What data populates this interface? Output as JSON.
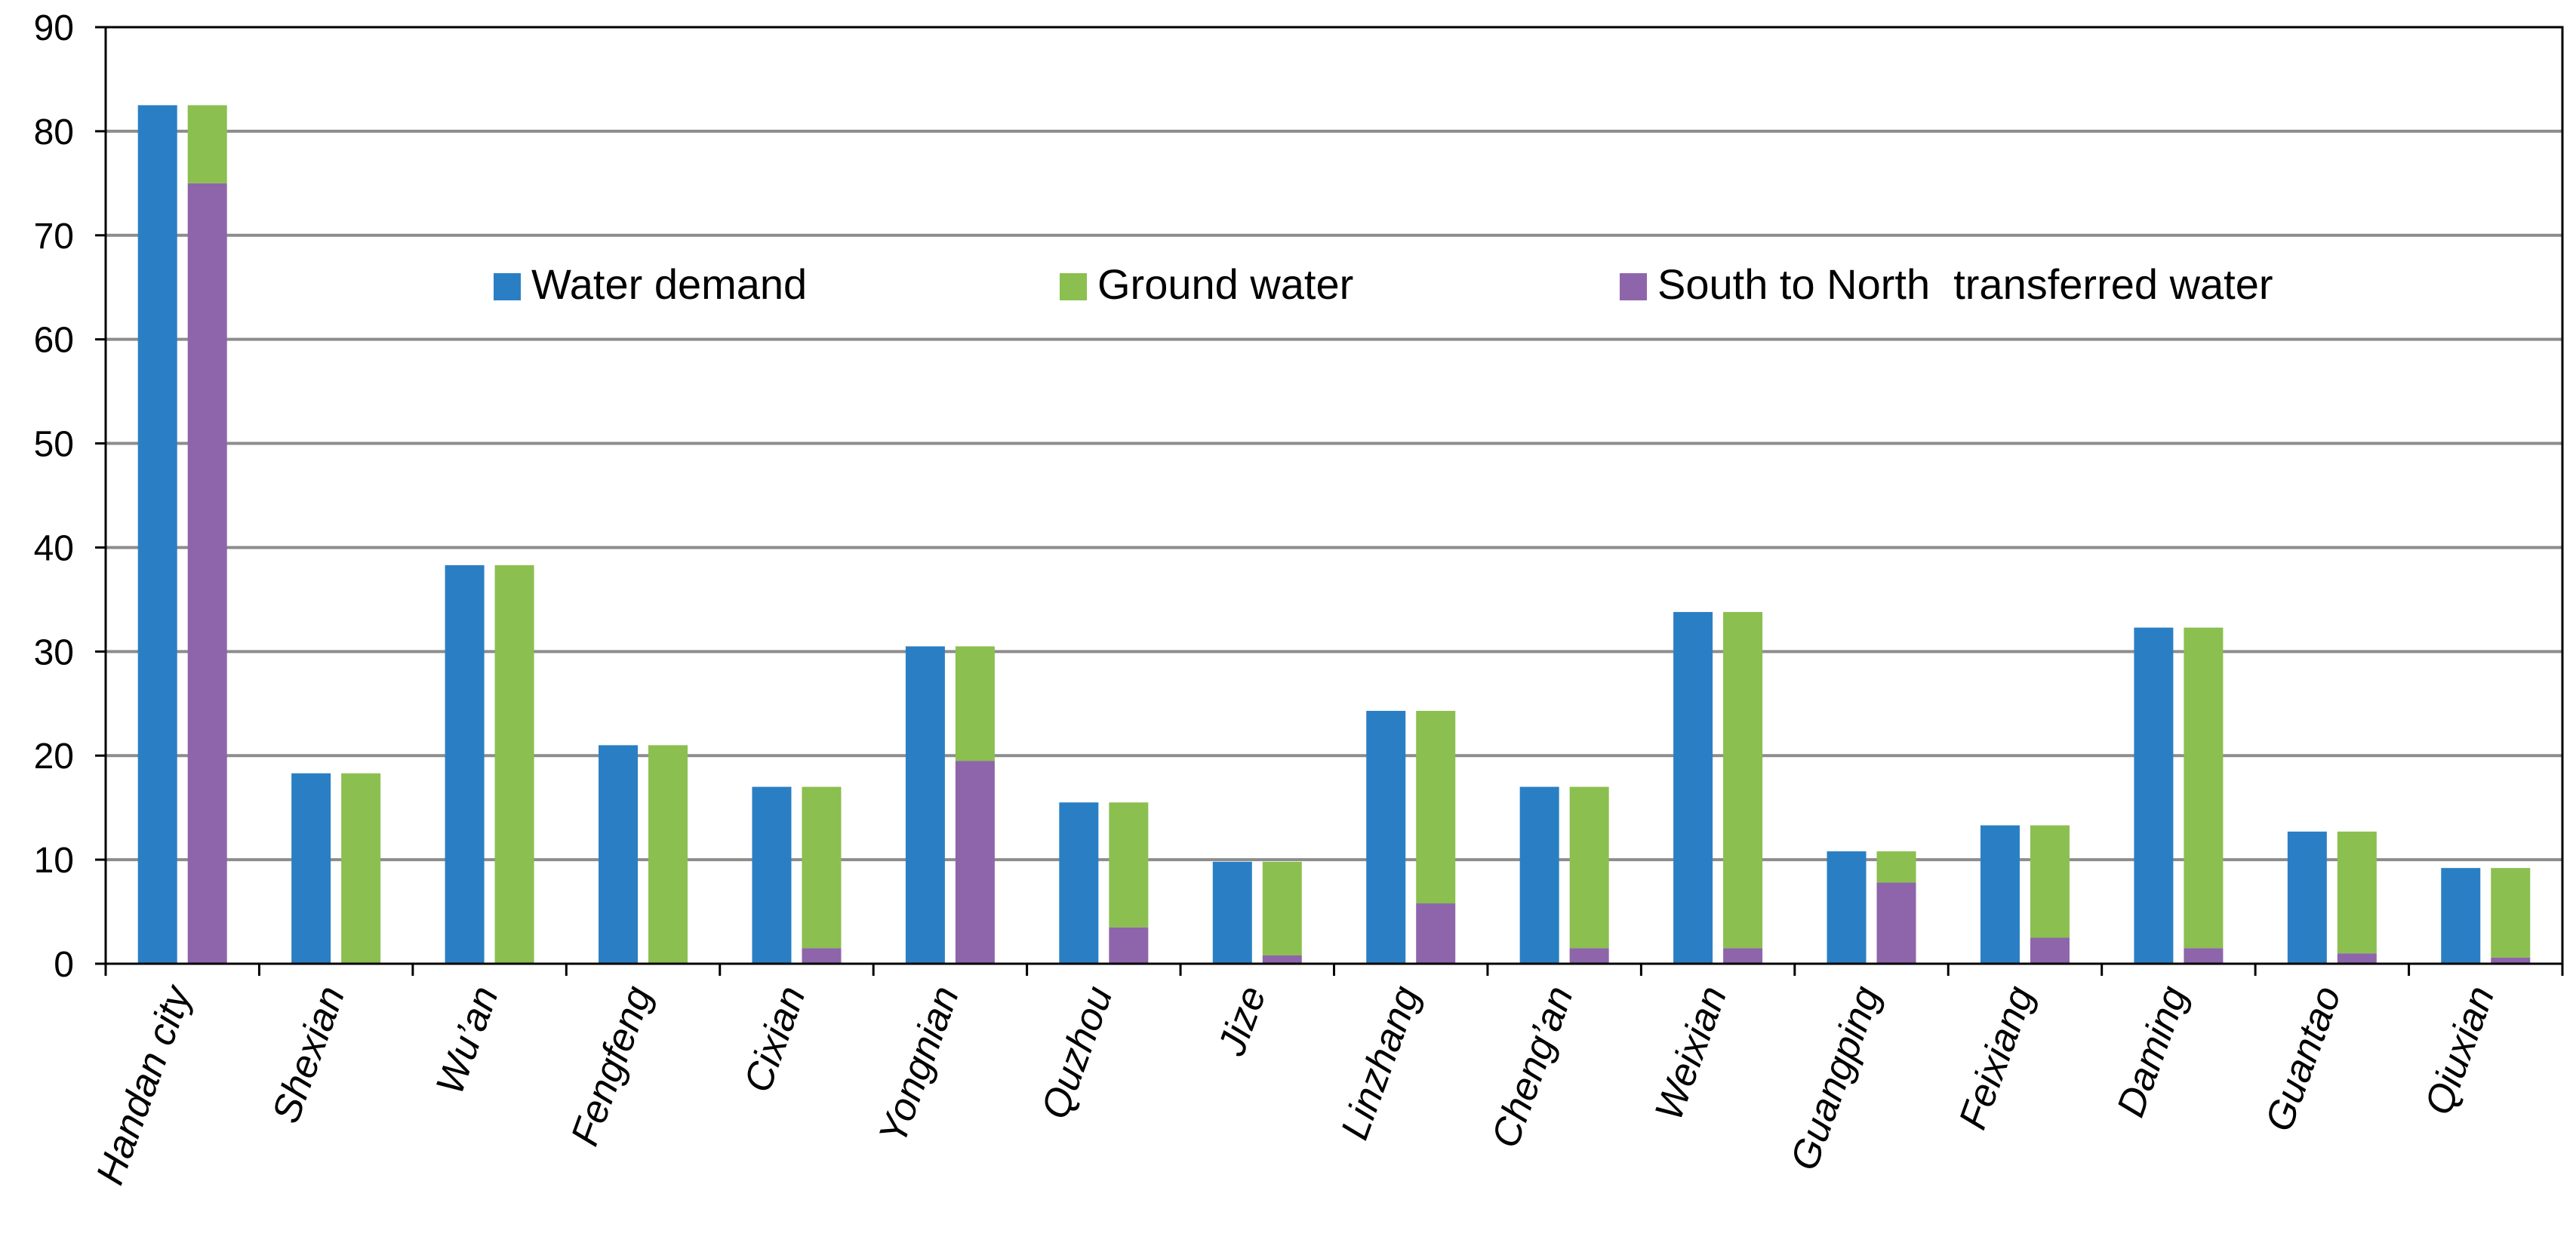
{
  "chart_data": {
    "type": "bar",
    "title": "",
    "xlabel": "",
    "ylabel": "",
    "ylim": [
      0,
      90
    ],
    "yticks": [
      0,
      10,
      20,
      30,
      40,
      50,
      60,
      70,
      80,
      90
    ],
    "grid": true,
    "legend_position": "top-center",
    "categories": [
      "Handan city",
      "Shexian",
      "Wu’an",
      "Fengfeng",
      "Cixian",
      "Yongnian",
      "Quzhou",
      "Jize",
      "Linzhang",
      "Cheng’an",
      "Weixian",
      "Guangping",
      "Feixiang",
      "Daming",
      "Guantao",
      "Qiuxian"
    ],
    "series": [
      {
        "name": "Water demand",
        "color": "#2a7fc4",
        "stack": "demand",
        "values": [
          82.5,
          18.3,
          38.3,
          21.0,
          17.0,
          30.5,
          15.5,
          9.8,
          24.3,
          17.0,
          33.8,
          10.8,
          13.3,
          32.3,
          12.7,
          9.2
        ]
      },
      {
        "name": "Ground water",
        "color": "#8bbf4f",
        "stack": "supply",
        "values": [
          7.5,
          18.3,
          38.3,
          21.0,
          15.5,
          11.0,
          12.0,
          9.0,
          18.5,
          15.5,
          32.3,
          3.0,
          10.8,
          30.8,
          11.7,
          8.6
        ]
      },
      {
        "name": "South to North  transferred water",
        "color": "#8e65aa",
        "stack": "supply",
        "values": [
          75.0,
          0,
          0,
          0,
          1.5,
          19.5,
          3.5,
          0.8,
          5.8,
          1.5,
          1.5,
          7.8,
          2.5,
          1.5,
          1.0,
          0.6
        ]
      }
    ]
  }
}
